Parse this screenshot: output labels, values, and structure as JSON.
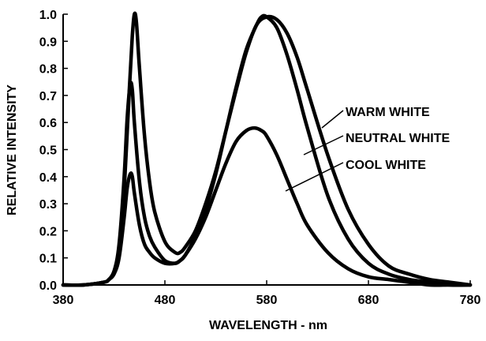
{
  "chart_data": {
    "type": "line",
    "title": "",
    "xlabel": "WAVELENGTH - nm",
    "ylabel": "RELATIVE INTENSITY",
    "xlim": [
      380,
      780
    ],
    "ylim": [
      0.0,
      1.0
    ],
    "x_ticks": [
      "380",
      "480",
      "580",
      "680",
      "780"
    ],
    "y_ticks": [
      "0.0",
      "0.1",
      "0.2",
      "0.3",
      "0.4",
      "0.5",
      "0.6",
      "0.7",
      "0.8",
      "0.9",
      "1.0"
    ],
    "grid": false,
    "series": [
      {
        "name": "WARM WHITE",
        "x": [
          380,
          400,
          420,
          425,
          430,
          435,
          440,
          445,
          448,
          450,
          452,
          455,
          460,
          465,
          470,
          480,
          490,
          495,
          500,
          510,
          520,
          530,
          540,
          550,
          560,
          570,
          580,
          590,
          600,
          610,
          620,
          640,
          660,
          680,
          700,
          720,
          740,
          760,
          780
        ],
        "y": [
          0.0,
          0.0,
          0.01,
          0.02,
          0.05,
          0.13,
          0.35,
          0.72,
          0.92,
          1.0,
          0.97,
          0.8,
          0.55,
          0.38,
          0.27,
          0.16,
          0.12,
          0.12,
          0.14,
          0.2,
          0.3,
          0.42,
          0.57,
          0.72,
          0.86,
          0.96,
          0.99,
          0.98,
          0.93,
          0.84,
          0.72,
          0.48,
          0.28,
          0.15,
          0.07,
          0.04,
          0.02,
          0.01,
          0.0
        ]
      },
      {
        "name": "NEUTRAL WHITE",
        "x": [
          380,
          400,
          420,
          425,
          430,
          435,
          440,
          443,
          446,
          448,
          450,
          455,
          460,
          465,
          470,
          480,
          490,
          495,
          500,
          510,
          520,
          530,
          540,
          550,
          560,
          570,
          575,
          580,
          590,
          600,
          610,
          620,
          640,
          660,
          680,
          700,
          720,
          740,
          760,
          780
        ],
        "y": [
          0.0,
          0.0,
          0.01,
          0.02,
          0.05,
          0.15,
          0.4,
          0.62,
          0.74,
          0.72,
          0.6,
          0.38,
          0.25,
          0.18,
          0.14,
          0.09,
          0.08,
          0.09,
          0.11,
          0.18,
          0.28,
          0.41,
          0.57,
          0.73,
          0.87,
          0.96,
          0.99,
          0.99,
          0.95,
          0.85,
          0.72,
          0.58,
          0.33,
          0.17,
          0.08,
          0.04,
          0.02,
          0.01,
          0.0,
          0.0
        ]
      },
      {
        "name": "COOL WHITE",
        "x": [
          380,
          400,
          420,
          425,
          430,
          435,
          440,
          443,
          446,
          448,
          450,
          455,
          460,
          465,
          470,
          480,
          490,
          495,
          500,
          510,
          520,
          530,
          540,
          550,
          560,
          568,
          575,
          580,
          590,
          600,
          610,
          620,
          640,
          660,
          680,
          700,
          720,
          740,
          760,
          780
        ],
        "y": [
          0.0,
          0.0,
          0.01,
          0.02,
          0.04,
          0.1,
          0.25,
          0.36,
          0.41,
          0.4,
          0.34,
          0.22,
          0.15,
          0.12,
          0.1,
          0.08,
          0.08,
          0.09,
          0.11,
          0.17,
          0.25,
          0.35,
          0.45,
          0.53,
          0.57,
          0.58,
          0.57,
          0.55,
          0.48,
          0.39,
          0.3,
          0.22,
          0.12,
          0.06,
          0.03,
          0.02,
          0.01,
          0.0,
          0.0,
          0.0
        ]
      }
    ],
    "annotations": [
      "WARM WHITE",
      "NEUTRAL WHITE",
      "COOL WHITE"
    ]
  }
}
